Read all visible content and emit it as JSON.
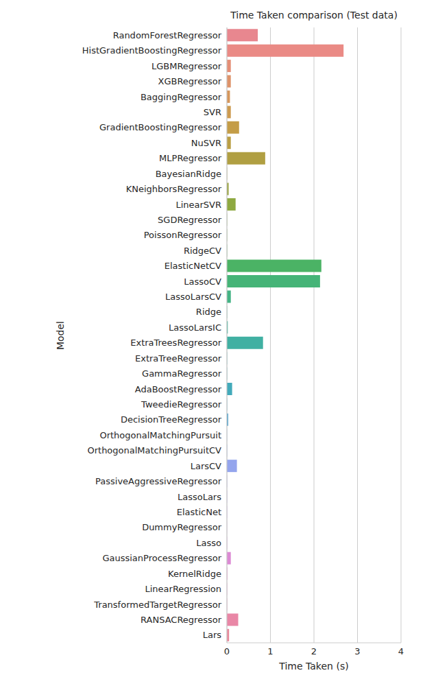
{
  "chart_data": {
    "type": "bar",
    "orientation": "horizontal",
    "title": "Time Taken comparison (Test data)",
    "x_label": "Time Taken (s)",
    "y_label": "Model",
    "categories": [
      "RandomForestRegressor",
      "HistGradientBoostingRegressor",
      "LGBMRegressor",
      "XGBRegressor",
      "BaggingRegressor",
      "SVR",
      "GradientBoostingRegressor",
      "NuSVR",
      "MLPRegressor",
      "BayesianRidge",
      "KNeighborsRegressor",
      "LinearSVR",
      "SGDRegressor",
      "PoissonRegressor",
      "RidgeCV",
      "ElasticNetCV",
      "LassoCV",
      "LassoLarsCV",
      "Ridge",
      "LassoLarsIC",
      "ExtraTreesRegressor",
      "ExtraTreeRegressor",
      "GammaRegressor",
      "AdaBoostRegressor",
      "TweedieRegressor",
      "DecisionTreeRegressor",
      "OrthogonalMatchingPursuit",
      "OrthogonalMatchingPursuitCV",
      "LarsCV",
      "PassiveAggressiveRegressor",
      "LassoLars",
      "ElasticNet",
      "DummyRegressor",
      "Lasso",
      "GaussianProcessRegressor",
      "KernelRidge",
      "LinearRegression",
      "TransformedTargetRegressor",
      "RANSACRegressor",
      "Lars"
    ],
    "values": [
      0.71,
      2.68,
      0.09,
      0.09,
      0.07,
      0.09,
      0.28,
      0.09,
      0.88,
      0.005,
      0.04,
      0.2,
      0.005,
      0.005,
      0.005,
      2.17,
      2.14,
      0.09,
      0.005,
      0.02,
      0.83,
      0.005,
      0.005,
      0.12,
      0.005,
      0.03,
      0.003,
      0.005,
      0.23,
      0.005,
      0.005,
      0.005,
      0.003,
      0.005,
      0.09,
      0.01,
      0.005,
      0.005,
      0.26,
      0.05
    ],
    "colors": [
      "#e8878f",
      "#ea8a85",
      "#e48e76",
      "#de936a",
      "#d6975c",
      "#cd9b50",
      "#c49d47",
      "#ba9f44",
      "#b09f42",
      "#a5a242",
      "#9aa541",
      "#8ea941",
      "#80ac45",
      "#6fae4c",
      "#5cb157",
      "#4bb365",
      "#45b477",
      "#43b384",
      "#42b290",
      "#41b199",
      "#40b0a2",
      "#40aeaa",
      "#40acb2",
      "#42aaba",
      "#4aa8c2",
      "#56a5cf",
      "#6aa3db",
      "#82a4e5",
      "#94a5ed",
      "#a4a2ef",
      "#b39fed",
      "#c29ae8",
      "#cd94e2",
      "#d58fdc",
      "#dc8ad4",
      "#e188ca",
      "#e587be",
      "#e887b2",
      "#e987a6",
      "#e8889b"
    ],
    "xlim": [
      0,
      4
    ],
    "xticks": [
      0,
      1,
      2,
      3,
      4
    ],
    "grid": true
  }
}
